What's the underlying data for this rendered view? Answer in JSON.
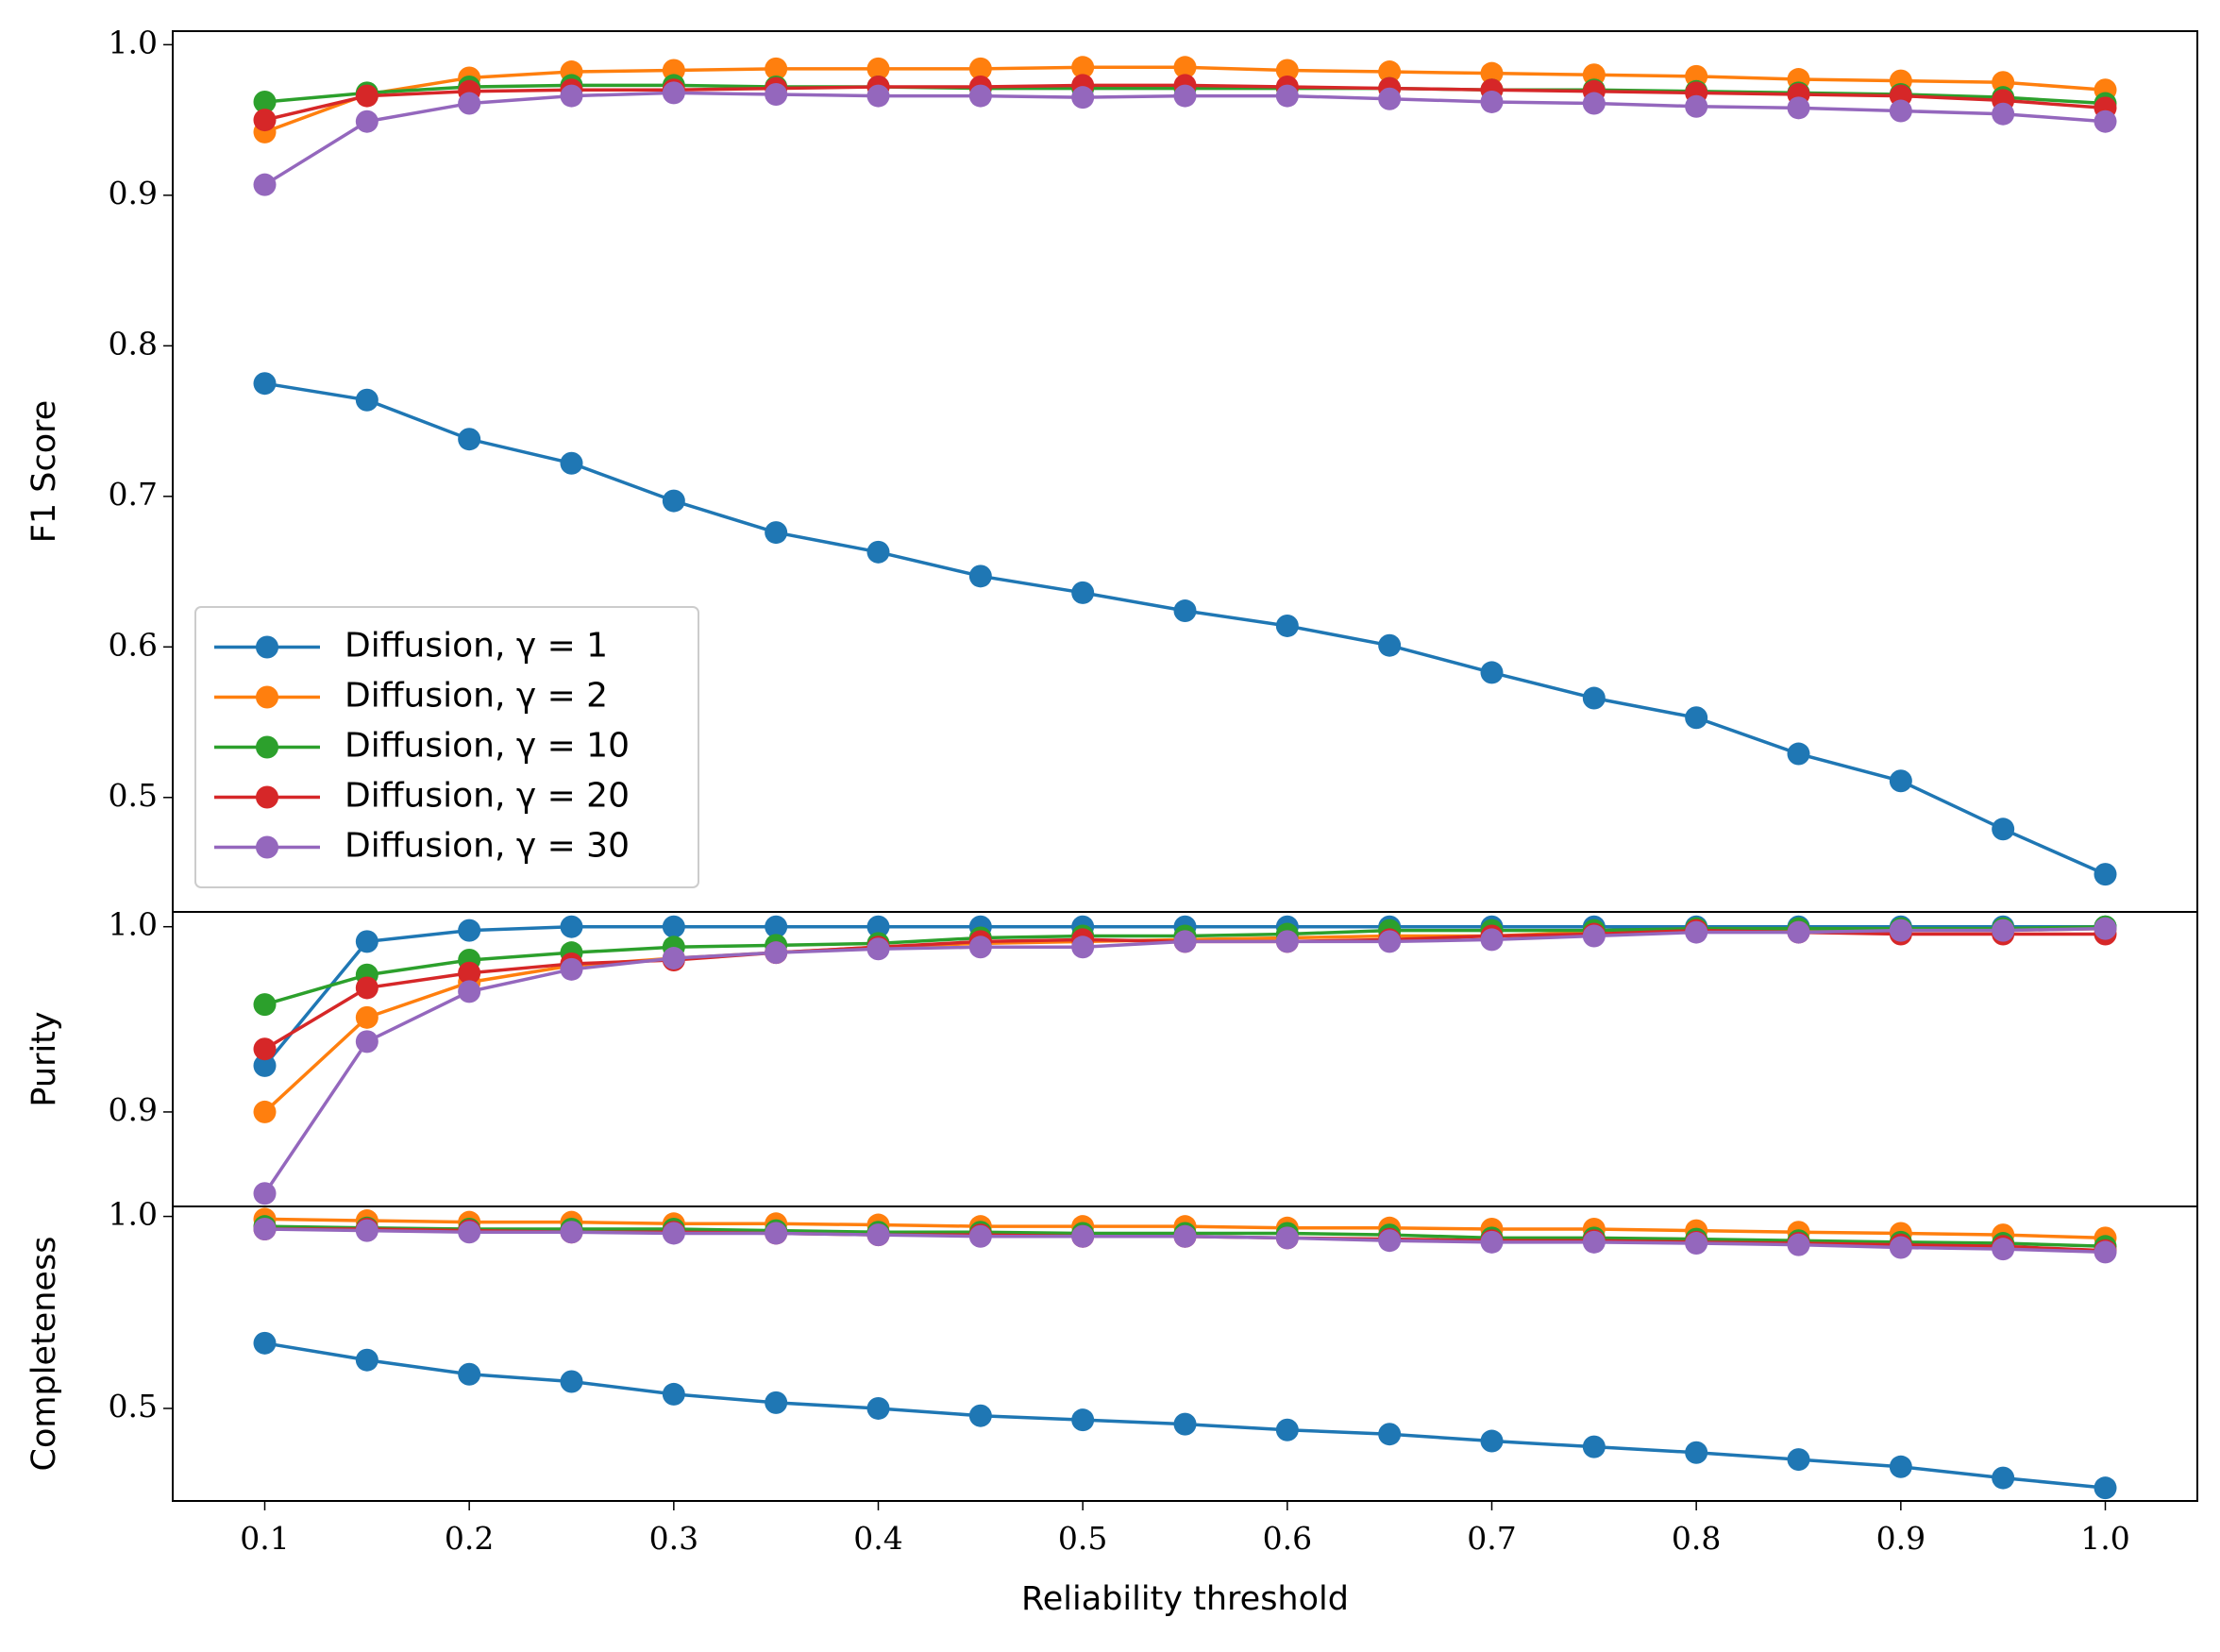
{
  "chart_data": [
    {
      "type": "line",
      "ylabel": "F1 Score",
      "legend": "lower left",
      "x": [
        0.1,
        0.15,
        0.2,
        0.25,
        0.3,
        0.35,
        0.4,
        0.45,
        0.5,
        0.55,
        0.6,
        0.65,
        0.7,
        0.75,
        0.8,
        0.85,
        0.9,
        0.95,
        1.0
      ],
      "xlim": [
        0.055,
        1.045
      ],
      "ylim": [
        0.424,
        1.009
      ],
      "yticks": [
        0.5,
        0.6,
        0.7,
        0.8,
        0.9,
        {
          "value": 1.0,
          "label": "1.0"
        }
      ],
      "series": [
        {
          "name": "Diffusion, γ = 1",
          "color": "#1f77b4",
          "values": [
            0.775,
            0.764,
            0.738,
            0.722,
            0.697,
            0.676,
            0.663,
            0.647,
            0.636,
            0.624,
            0.614,
            0.601,
            0.583,
            0.566,
            0.553,
            0.529,
            0.511,
            0.479,
            0.449
          ]
        },
        {
          "name": "Diffusion, γ = 2",
          "color": "#ff7f0e",
          "values": [
            0.942,
            0.967,
            0.978,
            0.982,
            0.983,
            0.984,
            0.984,
            0.984,
            0.985,
            0.985,
            0.983,
            0.982,
            0.981,
            0.98,
            0.979,
            0.977,
            0.976,
            0.975,
            0.97
          ]
        },
        {
          "name": "Diffusion, γ = 10",
          "color": "#2ca02c",
          "values": [
            0.962,
            0.968,
            0.972,
            0.973,
            0.973,
            0.972,
            0.972,
            0.971,
            0.971,
            0.971,
            0.971,
            0.971,
            0.97,
            0.97,
            0.969,
            0.968,
            0.967,
            0.965,
            0.961
          ]
        },
        {
          "name": "Diffusion, γ = 20",
          "color": "#d62728",
          "values": [
            0.95,
            0.966,
            0.969,
            0.97,
            0.97,
            0.971,
            0.972,
            0.972,
            0.973,
            0.973,
            0.972,
            0.971,
            0.97,
            0.969,
            0.968,
            0.967,
            0.966,
            0.963,
            0.958
          ]
        },
        {
          "name": "Diffusion, γ = 30",
          "color": "#9467bd",
          "values": [
            0.907,
            0.949,
            0.961,
            0.966,
            0.968,
            0.967,
            0.966,
            0.966,
            0.965,
            0.966,
            0.966,
            0.964,
            0.962,
            0.961,
            0.959,
            0.958,
            0.956,
            0.954,
            0.949
          ]
        }
      ]
    },
    {
      "type": "line",
      "ylabel": "Purity",
      "x": [
        0.1,
        0.15,
        0.2,
        0.25,
        0.3,
        0.35,
        0.4,
        0.45,
        0.5,
        0.55,
        0.6,
        0.65,
        0.7,
        0.75,
        0.8,
        0.85,
        0.9,
        0.95,
        1.0
      ],
      "xlim": [
        0.055,
        1.045
      ],
      "ylim": [
        0.849,
        1.008
      ],
      "yticks": [
        0.9,
        {
          "value": 1.0,
          "label": "1.0"
        }
      ],
      "series": [
        {
          "color": "#1f77b4",
          "values": [
            0.925,
            0.992,
            0.998,
            1.0,
            1.0,
            1.0,
            1.0,
            1.0,
            1.0,
            1.0,
            1.0,
            1.0,
            1.0,
            1.0,
            1.0,
            1.0,
            1.0,
            1.0,
            1.0
          ]
        },
        {
          "color": "#ff7f0e",
          "values": [
            0.9,
            0.951,
            0.97,
            0.979,
            0.983,
            0.986,
            0.989,
            0.991,
            0.992,
            0.993,
            0.994,
            0.995,
            0.995,
            0.997,
            0.998,
            0.998,
            0.998,
            0.998,
            0.999
          ]
        },
        {
          "color": "#2ca02c",
          "values": [
            0.958,
            0.974,
            0.982,
            0.986,
            0.989,
            0.99,
            0.991,
            0.994,
            0.995,
            0.995,
            0.996,
            0.998,
            0.998,
            0.998,
            0.999,
            0.999,
            0.999,
            0.999,
            1.0
          ]
        },
        {
          "color": "#d62728",
          "values": [
            0.934,
            0.967,
            0.975,
            0.98,
            0.982,
            0.986,
            0.989,
            0.992,
            0.993,
            0.992,
            0.992,
            0.993,
            0.995,
            0.996,
            0.998,
            0.997,
            0.996,
            0.996,
            0.996
          ]
        },
        {
          "color": "#9467bd",
          "values": [
            0.856,
            0.938,
            0.965,
            0.977,
            0.983,
            0.986,
            0.988,
            0.989,
            0.989,
            0.992,
            0.992,
            0.992,
            0.993,
            0.995,
            0.997,
            0.997,
            0.998,
            0.998,
            0.999
          ]
        }
      ]
    },
    {
      "type": "line",
      "ylabel": "Completeness",
      "xlabel": "Reliability threshold",
      "x": [
        0.1,
        0.15,
        0.2,
        0.25,
        0.3,
        0.35,
        0.4,
        0.45,
        0.5,
        0.55,
        0.6,
        0.65,
        0.7,
        0.75,
        0.8,
        0.85,
        0.9,
        0.95,
        1.0
      ],
      "xlim": [
        0.055,
        1.045
      ],
      "ylim": [
        0.259,
        1.026
      ],
      "xticks": [
        0.1,
        0.2,
        0.3,
        0.4,
        0.5,
        0.6,
        0.7,
        0.8,
        0.9,
        {
          "value": 1.0,
          "label": "1.0"
        }
      ],
      "yticks": [
        0.5,
        {
          "value": 1.0,
          "label": "1.0"
        }
      ],
      "series": [
        {
          "color": "#1f77b4",
          "values": [
            0.67,
            0.626,
            0.589,
            0.57,
            0.537,
            0.515,
            0.5,
            0.481,
            0.47,
            0.459,
            0.444,
            0.433,
            0.415,
            0.4,
            0.385,
            0.367,
            0.348,
            0.319,
            0.293
          ]
        },
        {
          "color": "#ff7f0e",
          "values": [
            0.993,
            0.989,
            0.985,
            0.985,
            0.981,
            0.981,
            0.978,
            0.974,
            0.974,
            0.974,
            0.97,
            0.97,
            0.967,
            0.967,
            0.963,
            0.959,
            0.956,
            0.952,
            0.944
          ]
        },
        {
          "color": "#2ca02c",
          "values": [
            0.974,
            0.97,
            0.967,
            0.967,
            0.967,
            0.963,
            0.959,
            0.959,
            0.956,
            0.956,
            0.956,
            0.952,
            0.944,
            0.944,
            0.941,
            0.937,
            0.933,
            0.93,
            0.922
          ]
        },
        {
          "color": "#d62728",
          "values": [
            0.967,
            0.967,
            0.963,
            0.959,
            0.959,
            0.956,
            0.952,
            0.952,
            0.948,
            0.948,
            0.944,
            0.941,
            0.937,
            0.937,
            0.933,
            0.93,
            0.926,
            0.922,
            0.911
          ]
        },
        {
          "color": "#9467bd",
          "values": [
            0.967,
            0.963,
            0.959,
            0.959,
            0.956,
            0.956,
            0.952,
            0.948,
            0.948,
            0.948,
            0.944,
            0.937,
            0.933,
            0.933,
            0.93,
            0.926,
            0.919,
            0.915,
            0.907
          ]
        }
      ]
    }
  ]
}
